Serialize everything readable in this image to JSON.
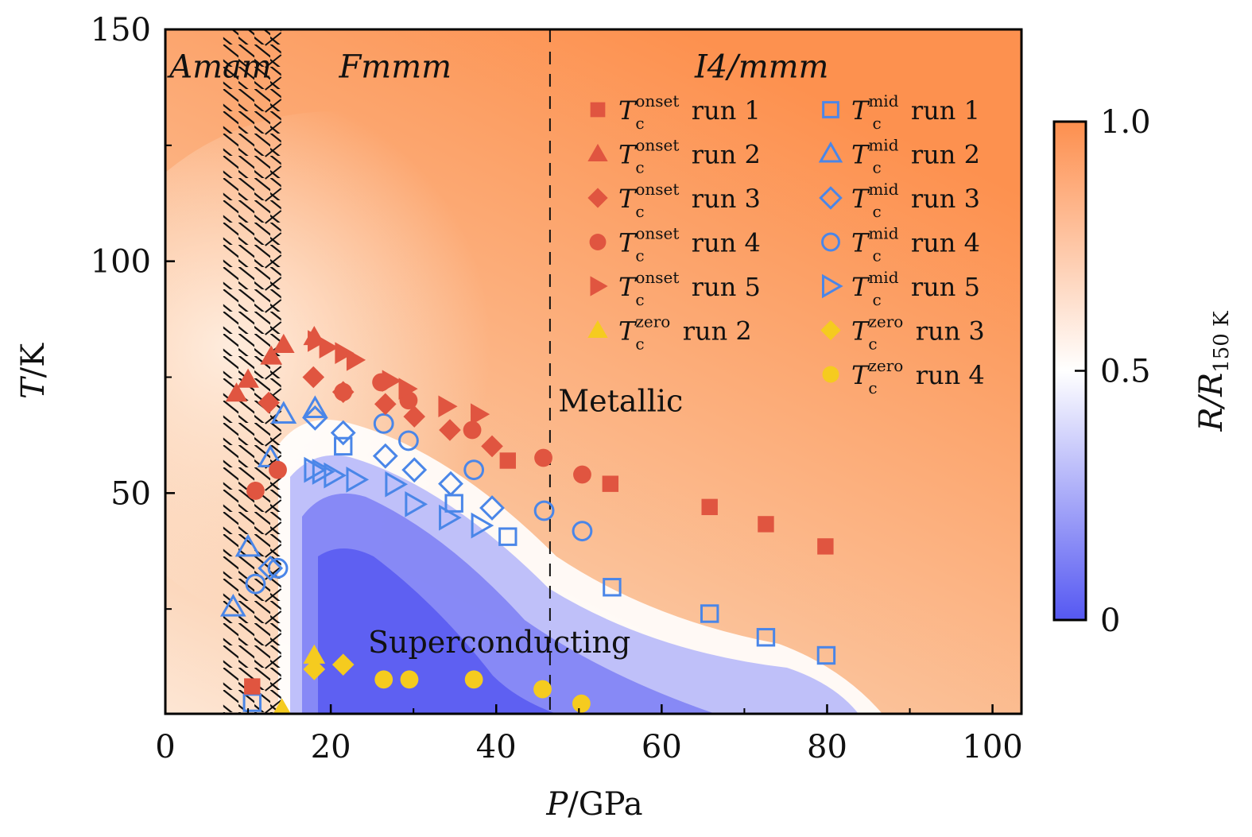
{
  "chart_data": {
    "type": "scatter",
    "title": "",
    "xlabel_var": "P",
    "xlabel_unit": "/GPa",
    "ylabel_var": "T",
    "ylabel_unit": "/K",
    "xlim": [
      0,
      103.5
    ],
    "ylim": [
      2.4,
      150
    ],
    "xticks": [
      0,
      20,
      40,
      60,
      80,
      100
    ],
    "xticks_minor": [
      10,
      30,
      50,
      70,
      90
    ],
    "yticks": [
      50,
      100,
      150
    ],
    "yticks_minor": [
      25,
      75,
      125
    ],
    "grid": false,
    "phase_labels": [
      {
        "text": "Amam",
        "x": 0.5,
        "y": 142
      },
      {
        "text": "Fmmm",
        "x": 21,
        "y": 142
      },
      {
        "text": "I4/mmm",
        "x": 64,
        "y": 142
      }
    ],
    "phase_boundary_dashed_P": 46.5,
    "hatched_region_P": [
      7,
      14
    ],
    "region_labels": [
      {
        "text": "Metallic",
        "x": 47.5,
        "y": 70
      },
      {
        "text": "Superconducting",
        "x": 24.5,
        "y": 18
      }
    ],
    "colorbar": {
      "label_var": "R/R",
      "label_sub": "150 K",
      "range": [
        0,
        1.0
      ],
      "ticks": [
        "0",
        "0.5",
        "1.0"
      ],
      "colors": {
        "low": "#5558f2",
        "mid": "#ffffff",
        "high": "#fd8f4e"
      }
    },
    "series": [
      {
        "name": "Tc onset run 1",
        "sym": "onset",
        "run": "run 1",
        "marker": "square",
        "filled": true,
        "color": "#e05540",
        "points": [
          [
            10.5,
            8.3
          ],
          [
            41.4,
            57
          ],
          [
            53.8,
            52
          ],
          [
            65.8,
            47
          ],
          [
            72.6,
            43.3
          ],
          [
            79.8,
            38.5
          ]
        ]
      },
      {
        "name": "Tc onset run 2",
        "sym": "onset",
        "run": "run 2",
        "marker": "triangle-up",
        "filled": true,
        "color": "#e05540",
        "points": [
          [
            8.6,
            71.5
          ],
          [
            10,
            74.5
          ],
          [
            12.8,
            79.5
          ],
          [
            14.3,
            82
          ],
          [
            18,
            83.7
          ]
        ]
      },
      {
        "name": "Tc onset run 3",
        "sym": "onset",
        "run": "run 3",
        "marker": "diamond",
        "filled": true,
        "color": "#e05540",
        "points": [
          [
            12.5,
            69.5
          ],
          [
            17.9,
            75
          ],
          [
            21.5,
            71.8
          ],
          [
            26.6,
            69.2
          ],
          [
            30.1,
            66.5
          ],
          [
            34.4,
            63.6
          ],
          [
            39.5,
            60.1
          ]
        ]
      },
      {
        "name": "Tc onset run 4",
        "sym": "onset",
        "run": "run 4",
        "marker": "circle",
        "filled": true,
        "color": "#e05540",
        "points": [
          [
            10.9,
            50.5
          ],
          [
            13.6,
            55
          ],
          [
            21.5,
            71.8
          ],
          [
            26.1,
            73.9
          ],
          [
            29.4,
            70
          ],
          [
            37.1,
            63.6
          ],
          [
            45.7,
            57.6
          ],
          [
            50.4,
            54
          ]
        ]
      },
      {
        "name": "Tc onset run 5",
        "sym": "onset",
        "run": "run 5",
        "marker": "triangle-right",
        "filled": true,
        "color": "#e05540",
        "points": [
          [
            18.2,
            82.8
          ],
          [
            19.6,
            81.4
          ],
          [
            21.5,
            80.2
          ],
          [
            22.9,
            78.7
          ],
          [
            27.2,
            74.2
          ],
          [
            29.2,
            72.5
          ],
          [
            34,
            68.7
          ],
          [
            37.9,
            67
          ]
        ]
      },
      {
        "name": "Tc mid run 1",
        "sym": "mid",
        "run": "run 1",
        "marker": "square",
        "filled": false,
        "color": "#4a86e8",
        "points": [
          [
            10.5,
            4.8
          ],
          [
            21.5,
            60.1
          ],
          [
            34.9,
            47.8
          ],
          [
            41.4,
            40.6
          ],
          [
            54,
            29.7
          ],
          [
            65.8,
            24
          ],
          [
            72.6,
            18.9
          ],
          [
            79.9,
            15
          ]
        ]
      },
      {
        "name": "Tc mid run 2",
        "sym": "mid",
        "run": "run 2",
        "marker": "triangle-up",
        "filled": false,
        "color": "#4a86e8",
        "points": [
          [
            8.2,
            25.4
          ],
          [
            10,
            38.3
          ],
          [
            12.7,
            57.6
          ],
          [
            14.3,
            67
          ],
          [
            18.1,
            68.2
          ]
        ]
      },
      {
        "name": "Tc mid run 3",
        "sym": "mid",
        "run": "run 3",
        "marker": "diamond",
        "filled": false,
        "color": "#4a86e8",
        "points": [
          [
            12.7,
            33.8
          ],
          [
            18.1,
            66.2
          ],
          [
            21.5,
            63
          ],
          [
            26.6,
            58
          ],
          [
            30.1,
            55
          ],
          [
            34.5,
            52
          ],
          [
            39.5,
            46.8
          ]
        ]
      },
      {
        "name": "Tc mid run 4",
        "sym": "mid",
        "run": "run 4",
        "marker": "circle",
        "filled": false,
        "color": "#4a86e8",
        "points": [
          [
            10.9,
            30.4
          ],
          [
            13.6,
            33.8
          ],
          [
            26.4,
            65
          ],
          [
            29.4,
            61.3
          ],
          [
            37.3,
            55
          ],
          [
            45.8,
            46.2
          ],
          [
            50.4,
            41.8
          ]
        ]
      },
      {
        "name": "Tc mid run 5",
        "sym": "mid",
        "run": "run 5",
        "marker": "triangle-right",
        "filled": false,
        "color": "#4a86e8",
        "points": [
          [
            17.9,
            55
          ],
          [
            18.9,
            54.6
          ],
          [
            20.3,
            53.8
          ],
          [
            23,
            52.9
          ],
          [
            27.7,
            51.9
          ],
          [
            30.1,
            47.6
          ],
          [
            34.2,
            44.7
          ],
          [
            38.1,
            43
          ]
        ]
      },
      {
        "name": "Tc zero run 2",
        "sym": "zero",
        "run": "run 2",
        "marker": "triangle-up",
        "filled": true,
        "color": "#f5cb1f",
        "points": [
          [
            14.1,
            3.4
          ],
          [
            18,
            15
          ]
        ]
      },
      {
        "name": "Tc zero run 3",
        "sym": "zero",
        "run": "run 3",
        "marker": "diamond",
        "filled": true,
        "color": "#f5cb1f",
        "points": [
          [
            18,
            12
          ],
          [
            21.5,
            13
          ]
        ]
      },
      {
        "name": "Tc zero run 4",
        "sym": "zero",
        "run": "run 4",
        "marker": "circle",
        "filled": true,
        "color": "#f5cb1f",
        "points": [
          [
            26.4,
            9.8
          ],
          [
            29.5,
            9.8
          ],
          [
            37.3,
            9.8
          ],
          [
            45.6,
            7.7
          ],
          [
            50.3,
            4.6
          ]
        ]
      }
    ],
    "legend": {
      "placement": "top-right",
      "columns": [
        [
          "Tc onset run 1",
          "Tc onset run 2",
          "Tc onset run 3",
          "Tc onset run 4",
          "Tc onset run 5",
          "Tc zero run 2"
        ],
        [
          "Tc mid run 1",
          "Tc mid run 2",
          "Tc mid run 3",
          "Tc mid run 4",
          "Tc mid run 5",
          "Tc zero run 3",
          "Tc zero run 4"
        ]
      ],
      "main_symbol": "T",
      "sub_symbol": "c"
    }
  }
}
